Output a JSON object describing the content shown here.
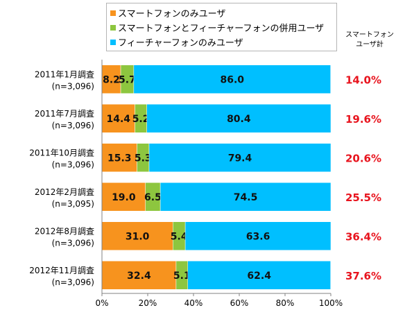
{
  "legend": {
    "items": [
      {
        "label": "スマートフォンのみユーザ",
        "color": "#f7931e"
      },
      {
        "label": "スマートフォンとフィーチャーフォンの併用ユーザ",
        "color": "#8dc63f"
      },
      {
        "label": "フィーチャーフォンのみユーザ",
        "color": "#00bfff"
      }
    ]
  },
  "share_header": {
    "line1": "スマートフォン",
    "line2": "ユーザ計"
  },
  "chart_data": {
    "type": "bar",
    "orientation": "horizontal",
    "stacked": true,
    "percent_stacked": true,
    "categories": [
      {
        "survey": "2011年1月調査",
        "n": "(n=3,096)"
      },
      {
        "survey": "2011年7月調査",
        "n": "(n=3,096)"
      },
      {
        "survey": "2011年10月調査",
        "n": "(n=3,096)"
      },
      {
        "survey": "2012年2月調査",
        "n": "(n=3,095)"
      },
      {
        "survey": "2012年8月調査",
        "n": "(n=3,096)"
      },
      {
        "survey": "2012年11月調査",
        "n": "(n=3,096)"
      }
    ],
    "series": [
      {
        "name": "スマートフォンのみユーザ",
        "color": "#f7931e",
        "values": [
          8.2,
          14.4,
          15.3,
          19.0,
          31.0,
          32.4
        ]
      },
      {
        "name": "スマートフォンとフィーチャーフォンの併用ユーザ",
        "color": "#8dc63f",
        "values": [
          5.7,
          5.2,
          5.3,
          6.5,
          5.4,
          5.1
        ]
      },
      {
        "name": "フィーチャーフォンのみユーザ",
        "color": "#00bfff",
        "values": [
          86.0,
          80.4,
          79.4,
          74.5,
          63.6,
          62.4
        ]
      }
    ],
    "totals": {
      "color": "#e8141e",
      "values": [
        "14.0%",
        "19.6%",
        "20.6%",
        "25.5%",
        "36.4%",
        "37.6%"
      ]
    },
    "xlim": [
      0,
      100
    ],
    "xticks": [
      "0%",
      "20%",
      "40%",
      "60%",
      "80%",
      "100%"
    ],
    "grid": false,
    "legend_position": "top"
  }
}
